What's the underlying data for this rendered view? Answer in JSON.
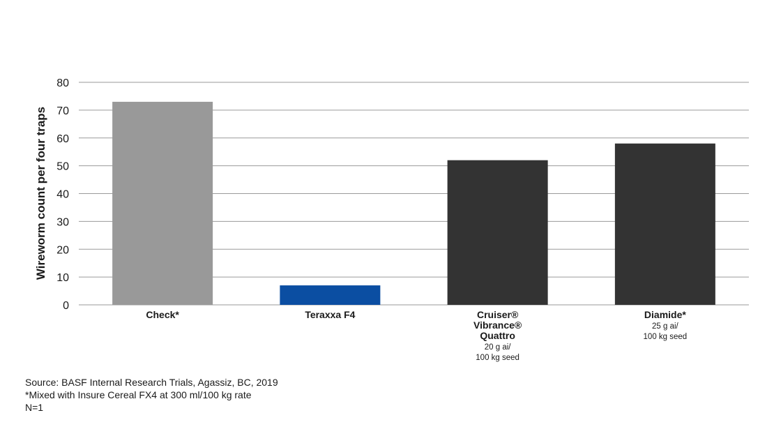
{
  "chart_data": {
    "type": "bar",
    "ylabel": "Wireworm count per four traps",
    "xlabel": "",
    "ylim": [
      0,
      80
    ],
    "yticks": [
      0,
      10,
      20,
      30,
      40,
      50,
      60,
      70,
      80
    ],
    "grid": true,
    "categories": [
      {
        "label": "Check*",
        "label_lines": [
          "Check*"
        ],
        "sub_lines": []
      },
      {
        "label": "Teraxxa F4",
        "label_lines": [
          "Teraxxa F4"
        ],
        "sub_lines": []
      },
      {
        "label": "Cruiser® Vibrance® Quattro",
        "label_lines": [
          "Cruiser®",
          "Vibrance®",
          "Quattro"
        ],
        "sub_lines": [
          "20 g ai/",
          "100 kg seed"
        ]
      },
      {
        "label": "Diamide*",
        "label_lines": [
          "Diamide*"
        ],
        "sub_lines": [
          "25 g ai/",
          "100 kg seed"
        ]
      }
    ],
    "values": [
      73,
      7,
      52,
      58
    ],
    "colors": [
      "#999999",
      "#0b4ea2",
      "#333333",
      "#333333"
    ]
  },
  "notes": {
    "source": "Source: BASF Internal Research Trials, Agassiz, BC, 2019",
    "footnote": "*Mixed with Insure Cereal FX4 at 300 ml/100 kg rate",
    "n": "N=1"
  }
}
